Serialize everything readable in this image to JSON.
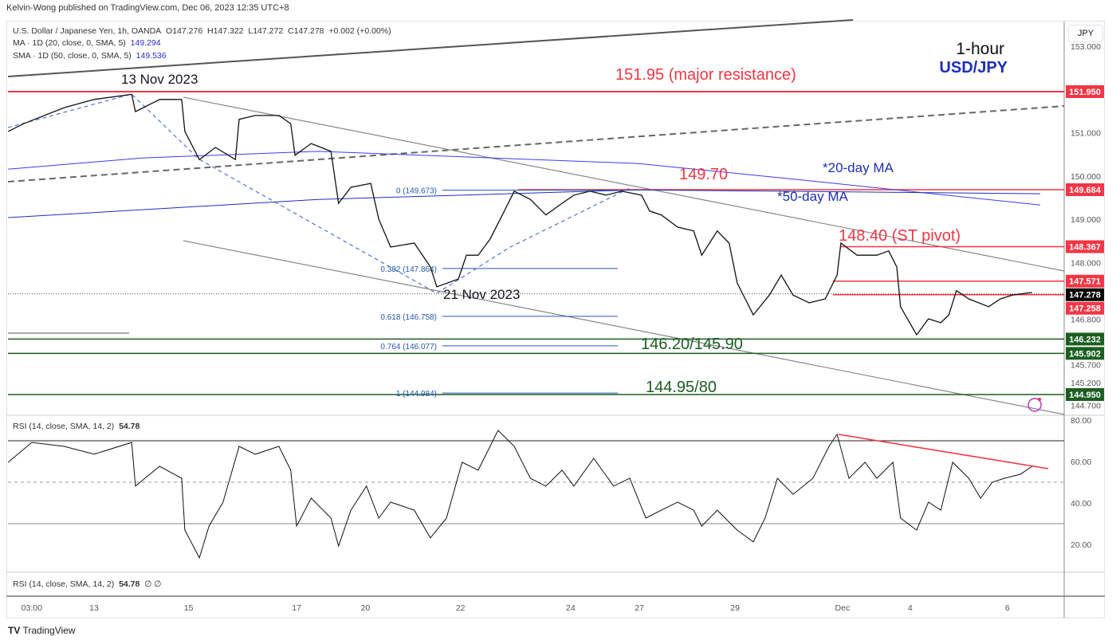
{
  "publisher": "Kelvin-Wong published on TradingView.com, Dec 06, 2023 12:35 UTC+8",
  "legend": {
    "symbol": "U.S. Dollar / Japanese Yen, 1h, OANDA",
    "ohlc": "O147.276  H147.322  L147.272  C147.278  +0.002 (+0.00%)",
    "ma20_label": "MA · 1D (20, close, 0, SMA, 5)",
    "ma20_value": "149.294",
    "ma50_label": "SMA · 1D (50, close, 0, SMA, 5)",
    "ma50_value": "149.536",
    "rsi_label": "RSI (14, close, SMA, 14, 2)",
    "rsi_value": "54.78",
    "rsi2_label": "RSI (14, close, SMA, 14, 2)",
    "rsi2_value": "54.78",
    "rsi2_extra": "∅ ∅"
  },
  "currency_button": "JPY",
  "brand": "TradingView",
  "title": {
    "timeframe": "1-hour",
    "pair": "USD/JPY"
  },
  "annotations": {
    "nov13": "13 Nov 2023",
    "nov21": "21 Nov 2023",
    "major_res": "151.95 (major resistance)",
    "lvl_14970": "149.70",
    "ma20": "*20-day MA",
    "ma50": "*50-day MA",
    "pivot": "148.40 (ST pivot)",
    "support1": "146.20/145.90",
    "support2": "144.95/80"
  },
  "colors": {
    "red": "#f23645",
    "green": "#1b5e20",
    "blue": "#1c2fb5",
    "ma": "#3b3bf0",
    "fib": "#2457b5"
  },
  "chart_data": [
    {
      "type": "line",
      "title": "U.S. Dollar / Japanese Yen, 1h, OANDA",
      "ylim": [
        144.55,
        153.5
      ],
      "y_ticks": [
        "153.000",
        "151.000",
        "150.000",
        "149.000",
        "148.000",
        "146.800",
        "145.700",
        "145.200",
        "144.700"
      ],
      "y_tick_values": [
        153.0,
        151.0,
        150.0,
        149.0,
        148.0,
        146.8,
        145.7,
        145.2,
        144.7
      ],
      "x_ticks": [
        {
          "label": "03:00",
          "day": -1.16
        },
        {
          "label": "13",
          "day": 0
        },
        {
          "label": "15",
          "day": 1.76
        },
        {
          "label": "17",
          "day": 3.77
        },
        {
          "label": "20",
          "day": 5.05
        },
        {
          "label": "22",
          "day": 6.82
        },
        {
          "label": "24",
          "day": 8.87
        },
        {
          "label": "27",
          "day": 10.15
        },
        {
          "label": "29",
          "day": 11.93
        },
        {
          "label": "Dec",
          "day": 13.93
        },
        {
          "label": "4",
          "day": 15.19
        },
        {
          "label": "6",
          "day": 17.0
        }
      ],
      "price": [
        [
          -1.6,
          151.03
        ],
        [
          -1.31,
          151.21
        ],
        [
          -0.56,
          151.58
        ],
        [
          0,
          151.77
        ],
        [
          0.7,
          151.89
        ],
        [
          0.77,
          151.49
        ],
        [
          1.22,
          151.77
        ],
        [
          1.63,
          151.77
        ],
        [
          1.69,
          151.03
        ],
        [
          1.96,
          150.38
        ],
        [
          2.26,
          150.66
        ],
        [
          2.63,
          150.38
        ],
        [
          2.7,
          151.31
        ],
        [
          3.0,
          151.4
        ],
        [
          3.44,
          151.4
        ],
        [
          3.66,
          151.21
        ],
        [
          3.74,
          150.48
        ],
        [
          4.04,
          150.75
        ],
        [
          4.41,
          150.57
        ],
        [
          4.55,
          149.37
        ],
        [
          4.78,
          149.74
        ],
        [
          5.15,
          149.83
        ],
        [
          5.3,
          149.0
        ],
        [
          5.52,
          148.36
        ],
        [
          5.96,
          148.45
        ],
        [
          6.26,
          147.9
        ],
        [
          6.38,
          147.44
        ],
        [
          6.78,
          147.62
        ],
        [
          6.93,
          148.17
        ],
        [
          7.15,
          148.17
        ],
        [
          7.37,
          148.54
        ],
        [
          7.6,
          149.1
        ],
        [
          7.82,
          149.65
        ],
        [
          8.12,
          149.46
        ],
        [
          8.41,
          149.1
        ],
        [
          8.71,
          149.37
        ],
        [
          8.93,
          149.56
        ],
        [
          9.23,
          149.65
        ],
        [
          9.53,
          149.56
        ],
        [
          9.82,
          149.65
        ],
        [
          10.19,
          149.56
        ],
        [
          10.34,
          149.19
        ],
        [
          10.56,
          149.1
        ],
        [
          10.86,
          148.82
        ],
        [
          11.16,
          148.73
        ],
        [
          11.31,
          148.17
        ],
        [
          11.6,
          148.73
        ],
        [
          11.82,
          148.45
        ],
        [
          11.97,
          147.53
        ],
        [
          12.27,
          146.79
        ],
        [
          12.57,
          147.25
        ],
        [
          12.79,
          147.71
        ],
        [
          13.01,
          147.25
        ],
        [
          13.31,
          147.07
        ],
        [
          13.61,
          147.16
        ],
        [
          13.83,
          147.71
        ],
        [
          13.9,
          148.45
        ],
        [
          14.2,
          148.17
        ],
        [
          14.57,
          148.17
        ],
        [
          14.79,
          148.27
        ],
        [
          14.94,
          147.9
        ],
        [
          15.01,
          146.98
        ],
        [
          15.31,
          146.33
        ],
        [
          15.53,
          146.7
        ],
        [
          15.76,
          146.61
        ],
        [
          15.91,
          146.79
        ],
        [
          16.05,
          147.35
        ],
        [
          16.28,
          147.16
        ],
        [
          16.65,
          146.98
        ],
        [
          16.87,
          147.16
        ],
        [
          17.09,
          147.25
        ],
        [
          17.46,
          147.31
        ]
      ],
      "ma20": [
        [
          -1.6,
          150.16
        ],
        [
          0.92,
          150.42
        ],
        [
          4.18,
          150.57
        ],
        [
          10.12,
          150.29
        ],
        [
          13.09,
          149.92
        ],
        [
          17.61,
          149.33
        ]
      ],
      "ma50": [
        [
          -1.6,
          149.04
        ],
        [
          4.18,
          149.46
        ],
        [
          10.12,
          149.68
        ],
        [
          17.61,
          149.59
        ]
      ],
      "levels": [
        {
          "price": 151.95,
          "label": "151.950",
          "color": "red"
        },
        {
          "price": 149.684,
          "label": "149.684",
          "color": "red"
        },
        {
          "price": 148.367,
          "label": "148.367",
          "color": "red"
        },
        {
          "price": 147.571,
          "label": "147.571",
          "color": "red"
        },
        {
          "price": 147.278,
          "label": "147.278",
          "color": "black"
        },
        {
          "price": 147.258,
          "label": "147.258",
          "color": "red"
        },
        {
          "price": 146.232,
          "label": "146.232",
          "color": "green"
        },
        {
          "price": 145.902,
          "label": "145.902",
          "color": "green"
        },
        {
          "price": 144.95,
          "label": "144.950",
          "color": "green"
        }
      ],
      "fib": [
        {
          "ratio": "0",
          "price": 149.673,
          "label": "0 (149.673)"
        },
        {
          "ratio": "0.382",
          "price": 147.864,
          "label": "0.382 (147.864)"
        },
        {
          "ratio": "0.618",
          "price": 146.758,
          "label": "0.618 (146.758)"
        },
        {
          "ratio": "0.764",
          "price": 146.077,
          "label": "0.764 (146.077)"
        },
        {
          "ratio": "1",
          "price": 144.984,
          "label": "1 (144.984)"
        }
      ]
    },
    {
      "type": "line",
      "title": "RSI (14, close, SMA, 14, 2)",
      "ylim": [
        0,
        100
      ],
      "y_ticks": [
        "80.00",
        "60.00",
        "40.00",
        "20.00"
      ],
      "y_tick_values": [
        80,
        60,
        40,
        20
      ],
      "bands": [
        70,
        50,
        30
      ],
      "rsi": [
        [
          -1.6,
          59.6
        ],
        [
          -1.16,
          69.2
        ],
        [
          -0.56,
          67.3
        ],
        [
          0,
          63.5
        ],
        [
          0.7,
          69.2
        ],
        [
          0.77,
          48.1
        ],
        [
          1.22,
          57.7
        ],
        [
          1.63,
          51.9
        ],
        [
          1.69,
          26.9
        ],
        [
          1.96,
          13.5
        ],
        [
          2.14,
          28.8
        ],
        [
          2.4,
          40.4
        ],
        [
          2.7,
          67.3
        ],
        [
          3.0,
          63.5
        ],
        [
          3.44,
          67.3
        ],
        [
          3.66,
          55.8
        ],
        [
          3.77,
          28.8
        ],
        [
          4.04,
          42.3
        ],
        [
          4.41,
          32.7
        ],
        [
          4.55,
          19.2
        ],
        [
          4.78,
          36.5
        ],
        [
          5.07,
          48.1
        ],
        [
          5.3,
          32.7
        ],
        [
          5.52,
          40.4
        ],
        [
          5.96,
          36.5
        ],
        [
          6.26,
          23.1
        ],
        [
          6.56,
          32.7
        ],
        [
          6.85,
          59.6
        ],
        [
          7.15,
          55.8
        ],
        [
          7.52,
          75.0
        ],
        [
          7.82,
          67.3
        ],
        [
          8.12,
          51.9
        ],
        [
          8.41,
          48.1
        ],
        [
          8.71,
          55.8
        ],
        [
          8.93,
          48.1
        ],
        [
          9.3,
          61.5
        ],
        [
          9.67,
          48.1
        ],
        [
          9.97,
          51.9
        ],
        [
          10.27,
          32.7
        ],
        [
          10.56,
          36.5
        ],
        [
          10.86,
          40.4
        ],
        [
          11.16,
          36.5
        ],
        [
          11.31,
          28.8
        ],
        [
          11.6,
          36.5
        ],
        [
          11.97,
          26.9
        ],
        [
          12.27,
          21.2
        ],
        [
          12.49,
          32.7
        ],
        [
          12.72,
          51.9
        ],
        [
          13.01,
          44.2
        ],
        [
          13.38,
          51.9
        ],
        [
          13.68,
          67.3
        ],
        [
          13.83,
          73.1
        ],
        [
          14.05,
          51.9
        ],
        [
          14.35,
          59.6
        ],
        [
          14.57,
          51.9
        ],
        [
          14.87,
          59.6
        ],
        [
          15.01,
          32.7
        ],
        [
          15.31,
          26.9
        ],
        [
          15.53,
          40.4
        ],
        [
          15.76,
          36.5
        ],
        [
          15.98,
          59.6
        ],
        [
          16.28,
          51.9
        ],
        [
          16.5,
          42.3
        ],
        [
          16.72,
          50.0
        ],
        [
          16.94,
          51.9
        ],
        [
          17.24,
          53.8
        ],
        [
          17.46,
          57.7
        ]
      ]
    }
  ]
}
